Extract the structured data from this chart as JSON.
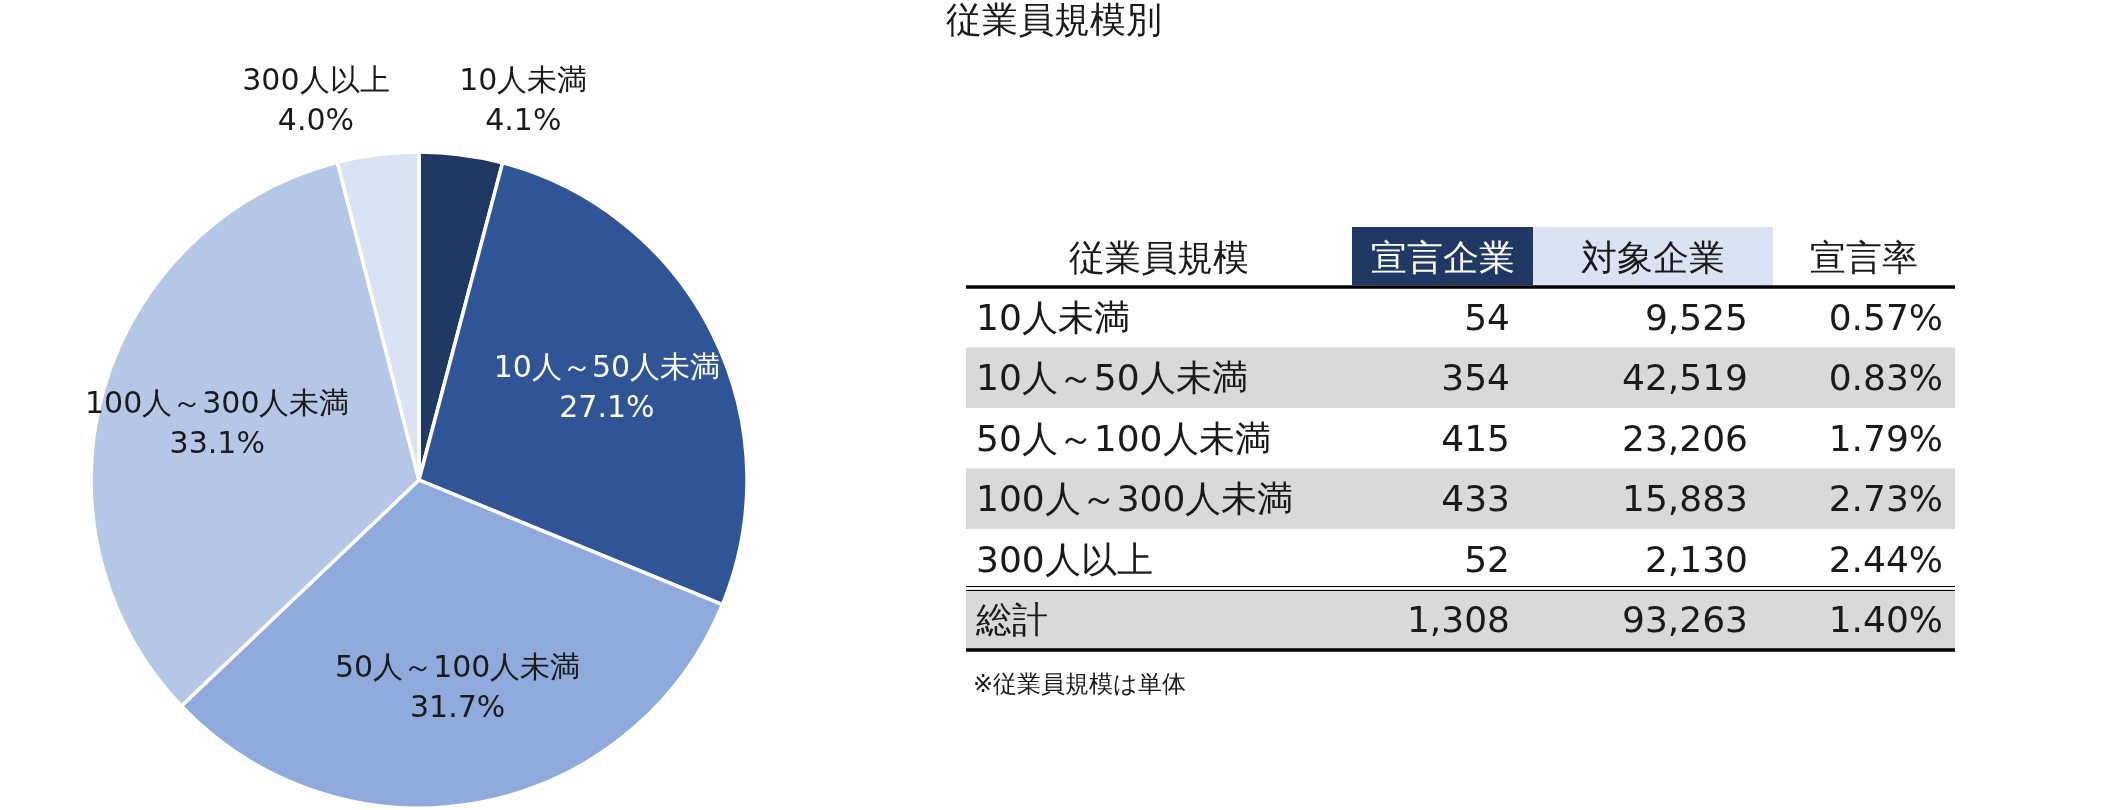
{
  "chart_data": [
    {
      "type": "pie",
      "categories": [
        "10人未満",
        "10人～50人未満",
        "50人～100人未満",
        "100人～300人未満",
        "300人以上"
      ],
      "values": [
        4.1,
        27.1,
        31.7,
        33.1,
        4.0
      ],
      "colors": [
        "#203864",
        "#2f5597",
        "#8faadc",
        "#b4c7e7",
        "#dae3f3"
      ],
      "value_labels": [
        "4.1%",
        "27.1%",
        "31.7%",
        "33.1%",
        "4.0%"
      ]
    },
    {
      "type": "other",
      "title": "従業員規模別",
      "ylabel": "従業員規模",
      "categories": [
        "10人未満",
        "10人～50人未満",
        "50人～100人未満",
        "100人～300人未満",
        "300人以上",
        "総計"
      ],
      "series": [
        {
          "name": "宣言企業",
          "values": [
            54,
            354,
            415,
            433,
            52,
            1308
          ],
          "value_labels": [
            "54",
            "354",
            "415",
            "433",
            "52",
            "1,308"
          ]
        },
        {
          "name": "対象企業",
          "values": [
            9525,
            42519,
            23206,
            15883,
            2130,
            93263
          ],
          "value_labels": [
            "9,525",
            "42,519",
            "23,206",
            "15,883",
            "2,130",
            "93,263"
          ]
        },
        {
          "name": "宣言率",
          "values": [
            0.57,
            0.83,
            1.79,
            2.73,
            2.44,
            1.4
          ],
          "value_labels": [
            "0.57%",
            "0.83%",
            "1.79%",
            "2.73%",
            "2.44%",
            "1.40%"
          ]
        }
      ],
      "annotations": [
        "※従業員規模は単体"
      ]
    }
  ]
}
